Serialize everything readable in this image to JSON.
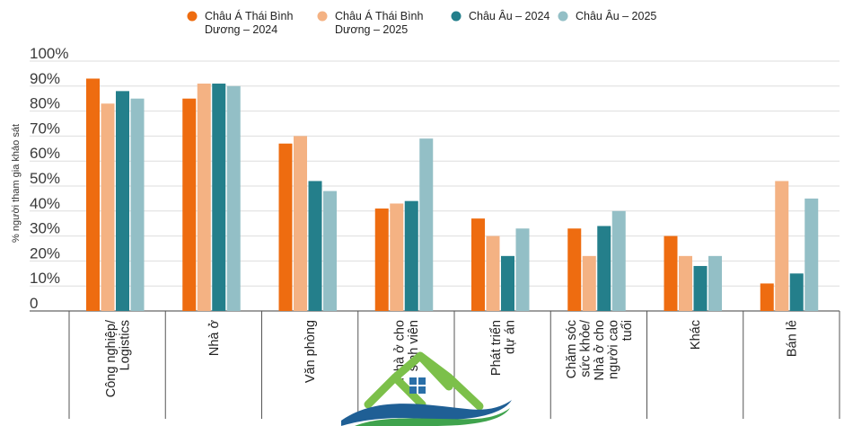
{
  "chart_data": {
    "type": "bar",
    "title": "",
    "ylabel": "% người tham gia khảo sát",
    "xlabel": "",
    "ylim": [
      0,
      100
    ],
    "yticks": [
      0,
      10,
      20,
      30,
      40,
      50,
      60,
      70,
      80,
      90,
      100
    ],
    "ytick_labels": [
      "0",
      "10%",
      "20%",
      "30%",
      "40%",
      "50%",
      "60%",
      "70%",
      "80%",
      "90%",
      "100%"
    ],
    "legend_position": "top",
    "categories": [
      [
        "Công nghiệp/",
        "Logistics"
      ],
      [
        "Nhà ở"
      ],
      [
        "Văn phòng"
      ],
      [
        "Nhà ở cho",
        "sinh viên"
      ],
      [
        "Phát triển",
        "dự án"
      ],
      [
        "Chăm sóc",
        "sức khỏe/",
        "Nhà ở cho",
        "người cao",
        "tuổi"
      ],
      [
        "Khác"
      ],
      [
        "Bán lẻ"
      ]
    ],
    "series": [
      {
        "name": [
          "Châu Á Thái Bình",
          "Dương – 2024"
        ],
        "color": "#ee6c10",
        "values": [
          93,
          85,
          67,
          41,
          37,
          33,
          30,
          11
        ]
      },
      {
        "name": [
          "Châu Á Thái Bình",
          "Dương – 2025"
        ],
        "color": "#f4b283",
        "values": [
          83,
          91,
          70,
          43,
          30,
          22,
          22,
          52
        ]
      },
      {
        "name": [
          "Châu Âu – 2024"
        ],
        "color": "#247f8b",
        "values": [
          88,
          91,
          52,
          44,
          22,
          34,
          18,
          15
        ]
      },
      {
        "name": [
          "Châu Âu – 2025"
        ],
        "color": "#93bfc6",
        "values": [
          85,
          90,
          48,
          69,
          33,
          40,
          22,
          45
        ]
      }
    ]
  }
}
